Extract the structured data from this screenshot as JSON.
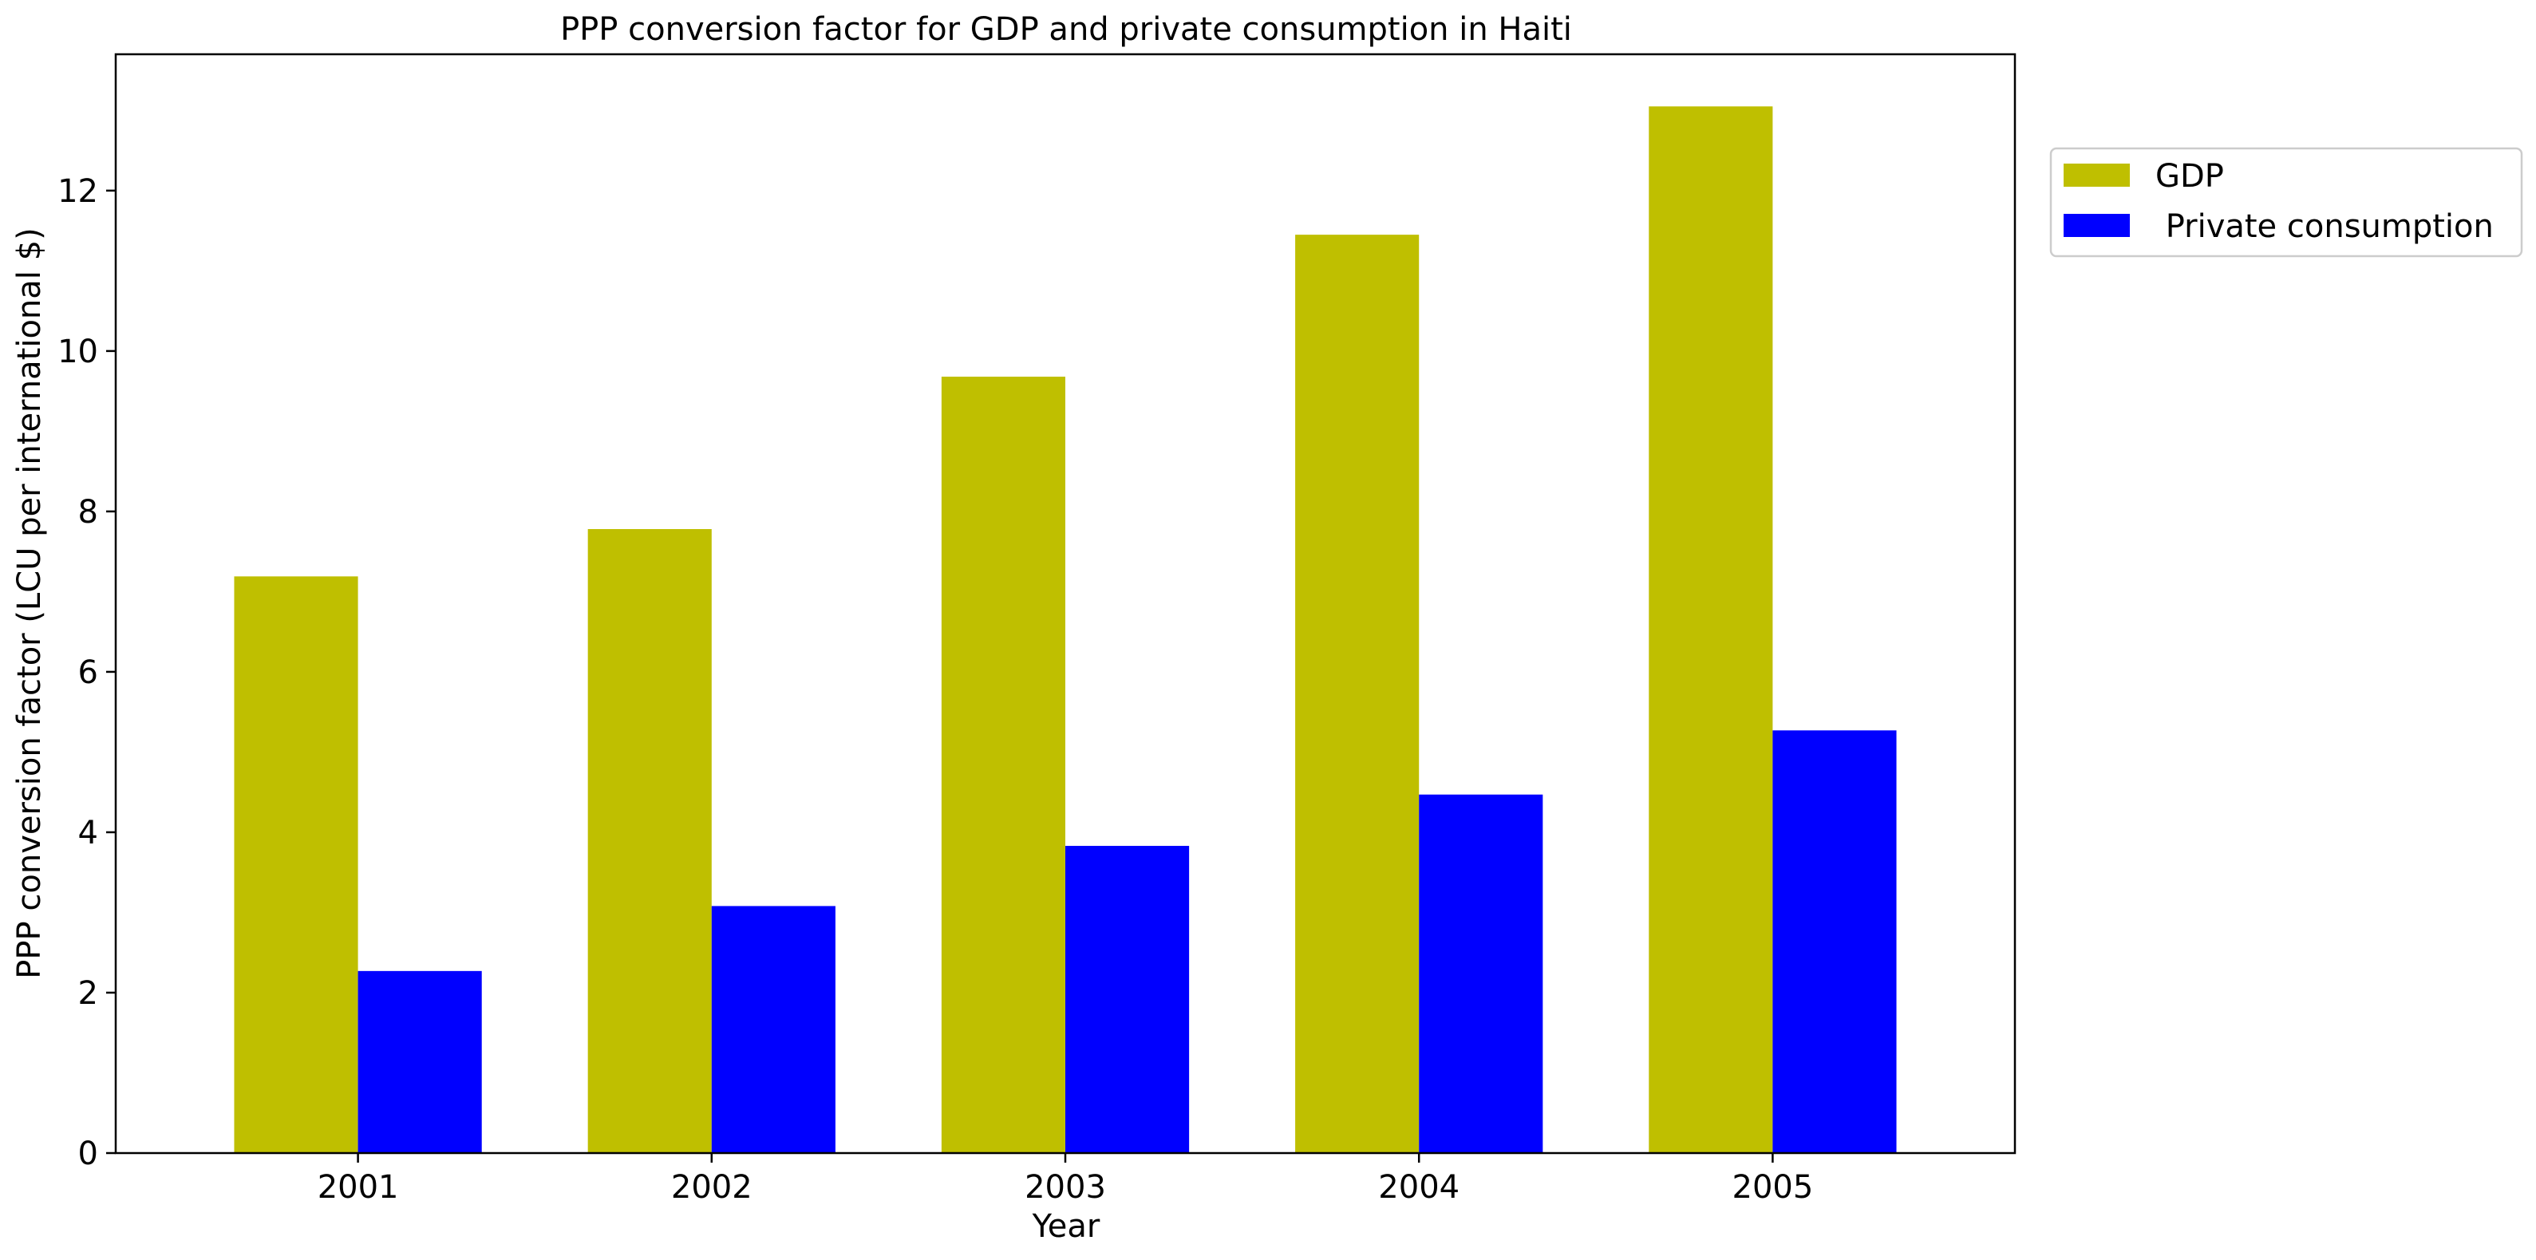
{
  "chart_data": {
    "type": "bar",
    "title": "PPP conversion factor for GDP and private consumption in Haiti",
    "xlabel": "Year",
    "ylabel": "PPP conversion factor (LCU per international $)",
    "categories": [
      "2001",
      "2002",
      "2003",
      "2004",
      "2005"
    ],
    "series": [
      {
        "name": "GDP",
        "color": "#bfbf00",
        "values": [
          7.19,
          7.78,
          9.68,
          11.45,
          13.05
        ]
      },
      {
        "name": " Private consumption",
        "color": "#0000ff",
        "values": [
          2.27,
          3.08,
          3.83,
          4.47,
          5.27
        ]
      }
    ],
    "ylim": [
      0,
      13.7
    ],
    "yticks": [
      0,
      2,
      4,
      6,
      8,
      10,
      12
    ],
    "grid": false,
    "legend_position": "outside-top-right"
  }
}
